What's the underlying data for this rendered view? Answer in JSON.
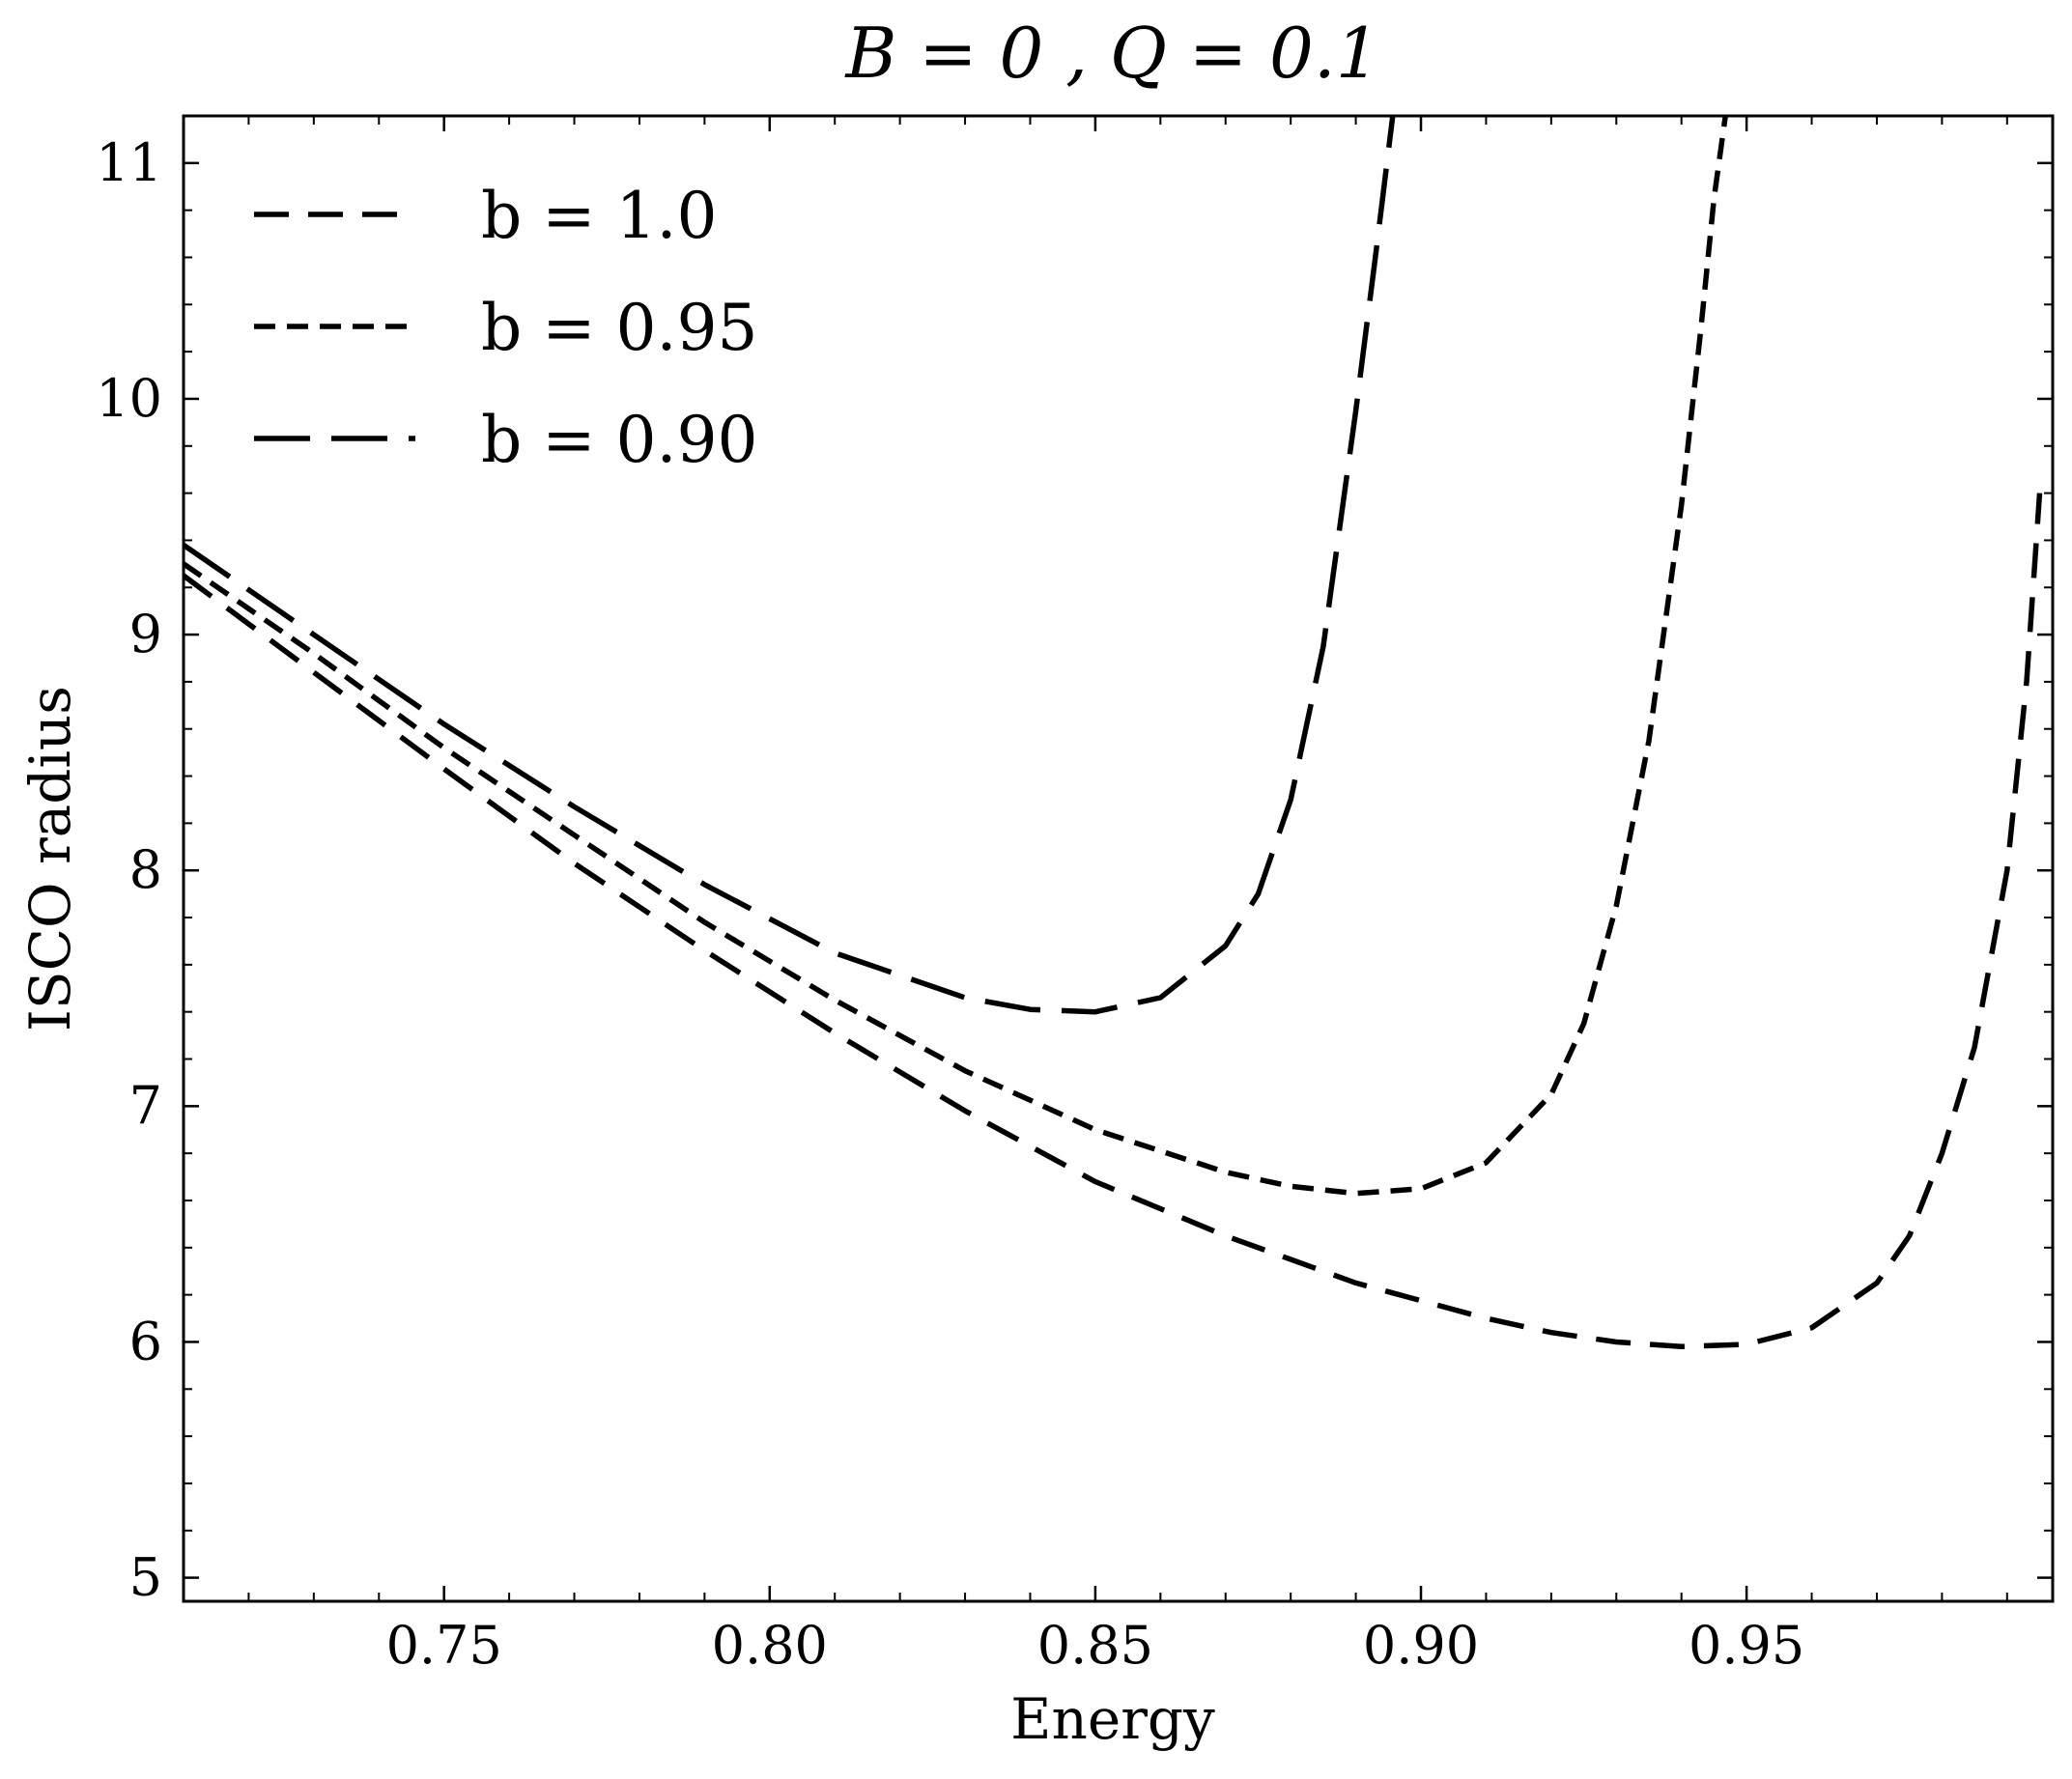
{
  "chart_data": {
    "type": "line",
    "title": "B = 0 ,  Q = 0.1",
    "xlabel": "Energy",
    "ylabel": "ISCO radius",
    "xlim": [
      0.71,
      0.997
    ],
    "ylim": [
      4.9,
      11.2
    ],
    "xticks": [
      0.75,
      0.8,
      0.85,
      0.9,
      0.95
    ],
    "xtick_labels": [
      "0.75",
      "0.80",
      "0.85",
      "0.90",
      "0.95"
    ],
    "yticks": [
      5,
      6,
      7,
      8,
      9,
      10,
      11
    ],
    "ytick_labels": [
      "5",
      "6",
      "7",
      "8",
      "9",
      "10",
      "11"
    ],
    "legend_position": "top-left",
    "grid": false,
    "series": [
      {
        "name": "b = 1.0",
        "dash": "medium",
        "x": [
          0.71,
          0.73,
          0.75,
          0.77,
          0.79,
          0.81,
          0.83,
          0.85,
          0.87,
          0.89,
          0.91,
          0.92,
          0.93,
          0.94,
          0.95,
          0.96,
          0.97,
          0.975,
          0.98,
          0.985,
          0.99,
          0.993,
          0.995
        ],
        "y": [
          9.25,
          8.84,
          8.43,
          8.03,
          7.66,
          7.31,
          6.98,
          6.68,
          6.45,
          6.25,
          6.1,
          6.04,
          6.0,
          5.98,
          5.99,
          6.06,
          6.25,
          6.45,
          6.8,
          7.25,
          8.0,
          8.8,
          9.6
        ]
      },
      {
        "name": "b = 0.95",
        "dash": "short",
        "x": [
          0.71,
          0.73,
          0.75,
          0.77,
          0.79,
          0.81,
          0.83,
          0.85,
          0.87,
          0.88,
          0.89,
          0.9,
          0.91,
          0.92,
          0.925,
          0.93,
          0.935,
          0.94,
          0.943,
          0.945,
          0.947
        ],
        "y": [
          9.3,
          8.92,
          8.52,
          8.15,
          7.78,
          7.45,
          7.15,
          6.9,
          6.72,
          6.66,
          6.63,
          6.65,
          6.76,
          7.05,
          7.35,
          7.85,
          8.55,
          9.55,
          10.3,
          10.85,
          11.25
        ]
      },
      {
        "name": "b = 0.90",
        "dash": "long",
        "x": [
          0.71,
          0.73,
          0.75,
          0.77,
          0.79,
          0.81,
          0.83,
          0.84,
          0.85,
          0.86,
          0.87,
          0.875,
          0.88,
          0.885,
          0.89,
          0.893,
          0.895,
          0.897
        ],
        "y": [
          9.38,
          9.0,
          8.62,
          8.27,
          7.94,
          7.65,
          7.46,
          7.41,
          7.4,
          7.46,
          7.68,
          7.9,
          8.3,
          8.95,
          9.95,
          10.6,
          11.05,
          11.5
        ]
      }
    ]
  }
}
